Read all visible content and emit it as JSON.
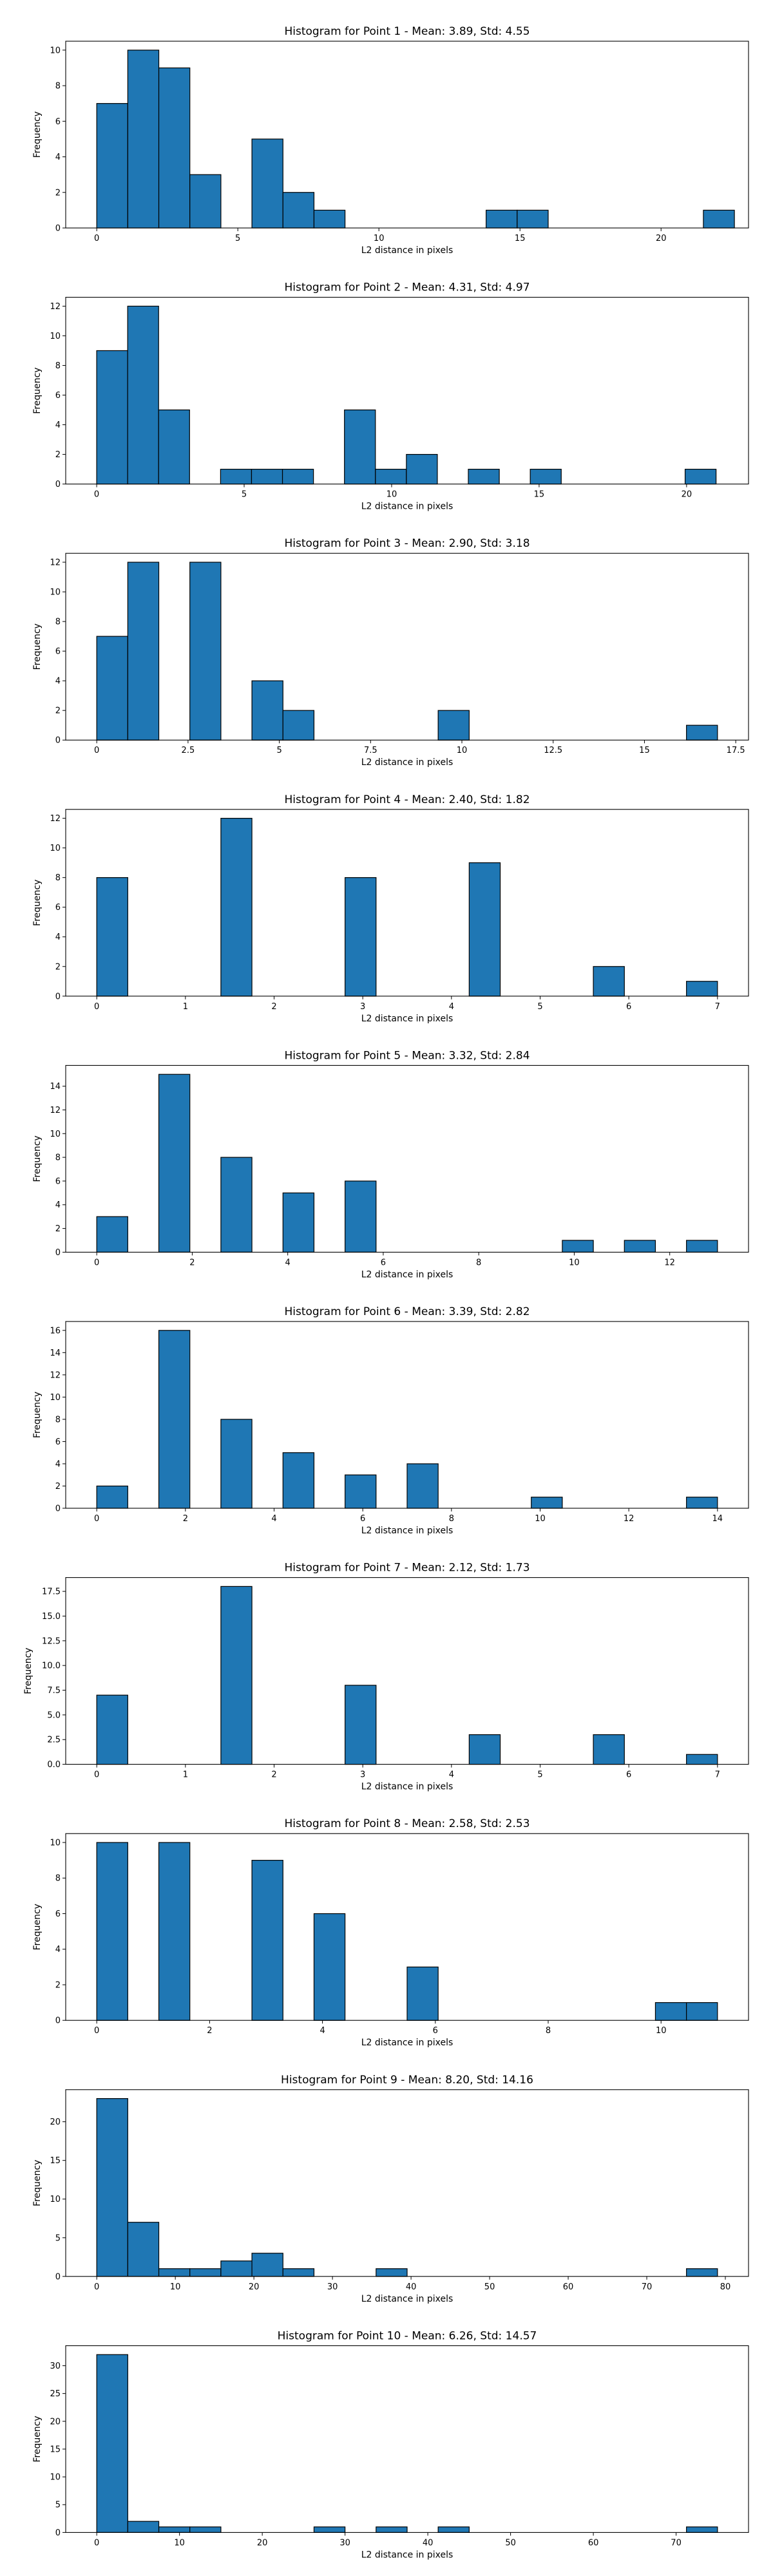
{
  "colors": {
    "bar_fill": "#1f77b4",
    "bar_edge": "#000000",
    "axes": "#000000"
  },
  "chart_data": [
    {
      "type": "bar",
      "title": "Histogram for Point 1 - Mean: 3.89, Std: 4.55",
      "xlabel": "L2 distance in pixels",
      "ylabel": "Frequency",
      "xlim": [
        -1.1,
        23.1
      ],
      "ylim": [
        0,
        10.5
      ],
      "xticks": [
        0,
        5,
        10,
        15,
        20
      ],
      "yticks": [
        0,
        2,
        4,
        6,
        8,
        10
      ],
      "bins": [
        [
          0.0,
          1.1,
          7
        ],
        [
          1.1,
          2.2,
          10
        ],
        [
          2.2,
          3.3,
          9
        ],
        [
          3.3,
          4.4,
          3
        ],
        [
          5.5,
          6.6,
          5
        ],
        [
          6.6,
          7.7,
          2
        ],
        [
          7.7,
          8.8,
          1
        ],
        [
          13.8,
          14.9,
          1
        ],
        [
          14.9,
          16.0,
          1
        ],
        [
          21.5,
          22.6,
          1
        ]
      ]
    },
    {
      "type": "bar",
      "title": "Histogram for Point 2 - Mean: 4.31, Std: 4.97",
      "xlabel": "L2 distance in pixels",
      "ylabel": "Frequency",
      "xlim": [
        -1.05,
        22.1
      ],
      "ylim": [
        0,
        12.6
      ],
      "xticks": [
        0,
        5,
        10,
        15,
        20
      ],
      "yticks": [
        0,
        2,
        4,
        6,
        8,
        10,
        12
      ],
      "bins": [
        [
          0.0,
          1.05,
          9
        ],
        [
          1.05,
          2.1,
          12
        ],
        [
          2.1,
          3.15,
          5
        ],
        [
          4.2,
          5.25,
          1
        ],
        [
          5.25,
          6.3,
          1
        ],
        [
          6.3,
          7.35,
          1
        ],
        [
          8.4,
          9.45,
          5
        ],
        [
          9.45,
          10.5,
          1
        ],
        [
          10.5,
          11.55,
          2
        ],
        [
          12.6,
          13.65,
          1
        ],
        [
          14.7,
          15.75,
          1
        ],
        [
          19.95,
          21.0,
          1
        ]
      ]
    },
    {
      "type": "bar",
      "title": "Histogram for Point 3 - Mean: 2.90, Std: 3.18",
      "xlabel": "L2 distance in pixels",
      "ylabel": "Frequency",
      "xlim": [
        -0.85,
        17.85
      ],
      "ylim": [
        0,
        12.6
      ],
      "xticks": [
        0.0,
        2.5,
        5.0,
        7.5,
        10.0,
        12.5,
        15.0,
        17.5
      ],
      "yticks": [
        0,
        2,
        4,
        6,
        8,
        10,
        12
      ],
      "bins": [
        [
          0.0,
          0.85,
          7
        ],
        [
          0.85,
          1.7,
          12
        ],
        [
          2.55,
          3.4,
          12
        ],
        [
          4.25,
          5.1,
          4
        ],
        [
          5.1,
          5.95,
          2
        ],
        [
          9.35,
          10.2,
          2
        ],
        [
          16.15,
          17.0,
          1
        ]
      ]
    },
    {
      "type": "bar",
      "title": "Histogram for Point 4 - Mean: 2.40, Std: 1.82",
      "xlabel": "L2 distance in pixels",
      "ylabel": "Frequency",
      "xlim": [
        -0.35,
        7.35
      ],
      "ylim": [
        0,
        12.6
      ],
      "xticks": [
        0,
        1,
        2,
        3,
        4,
        5,
        6,
        7
      ],
      "yticks": [
        0,
        2,
        4,
        6,
        8,
        10,
        12
      ],
      "bins": [
        [
          0.0,
          0.35,
          8
        ],
        [
          1.4,
          1.75,
          12
        ],
        [
          2.8,
          3.15,
          8
        ],
        [
          4.2,
          4.55,
          9
        ],
        [
          5.6,
          5.95,
          2
        ],
        [
          6.65,
          7.0,
          1
        ]
      ]
    },
    {
      "type": "bar",
      "title": "Histogram for Point 5 - Mean: 3.32, Std: 2.84",
      "xlabel": "L2 distance in pixels",
      "ylabel": "Frequency",
      "xlim": [
        -0.65,
        13.65
      ],
      "ylim": [
        0,
        15.75
      ],
      "xticks": [
        0,
        2,
        4,
        6,
        8,
        10,
        12
      ],
      "yticks": [
        0,
        2,
        4,
        6,
        8,
        10,
        12,
        14
      ],
      "bins": [
        [
          0.0,
          0.65,
          3
        ],
        [
          1.3,
          1.95,
          15
        ],
        [
          2.6,
          3.25,
          8
        ],
        [
          3.9,
          4.55,
          5
        ],
        [
          5.2,
          5.85,
          6
        ],
        [
          9.75,
          10.4,
          1
        ],
        [
          11.05,
          11.7,
          1
        ],
        [
          12.35,
          13.0,
          1
        ]
      ]
    },
    {
      "type": "bar",
      "title": "Histogram for Point 6 - Mean: 3.39, Std: 2.82",
      "xlabel": "L2 distance in pixels",
      "ylabel": "Frequency",
      "xlim": [
        -0.7,
        14.7
      ],
      "ylim": [
        0,
        16.8
      ],
      "xticks": [
        0,
        2,
        4,
        6,
        8,
        10,
        12,
        14
      ],
      "yticks": [
        0,
        2,
        4,
        6,
        8,
        10,
        12,
        14,
        16
      ],
      "bins": [
        [
          0.0,
          0.7,
          2
        ],
        [
          1.4,
          2.1,
          16
        ],
        [
          2.8,
          3.5,
          8
        ],
        [
          4.2,
          4.9,
          5
        ],
        [
          5.6,
          6.3,
          3
        ],
        [
          7.0,
          7.7,
          4
        ],
        [
          9.8,
          10.5,
          1
        ],
        [
          13.3,
          14.0,
          1
        ]
      ]
    },
    {
      "type": "bar",
      "title": "Histogram for Point 7 - Mean: 2.12, Std: 1.73",
      "xlabel": "L2 distance in pixels",
      "ylabel": "Frequency",
      "xlim": [
        -0.35,
        7.35
      ],
      "ylim": [
        0,
        18.9
      ],
      "xticks": [
        0,
        1,
        2,
        3,
        4,
        5,
        6,
        7
      ],
      "yticks": [
        0.0,
        2.5,
        5.0,
        7.5,
        10.0,
        12.5,
        15.0,
        17.5
      ],
      "ytick_labels": [
        "0.0",
        "2.5",
        "5.0",
        "7.5",
        "10.0",
        "12.5",
        "15.0",
        "17.5"
      ],
      "bins": [
        [
          0.0,
          0.35,
          7
        ],
        [
          1.4,
          1.75,
          18
        ],
        [
          2.8,
          3.15,
          8
        ],
        [
          4.2,
          4.55,
          3
        ],
        [
          5.6,
          5.95,
          3
        ],
        [
          6.65,
          7.0,
          1
        ]
      ]
    },
    {
      "type": "bar",
      "title": "Histogram for Point 8 - Mean: 2.58, Std: 2.53",
      "xlabel": "L2 distance in pixels",
      "ylabel": "Frequency",
      "xlim": [
        -0.55,
        11.55
      ],
      "ylim": [
        0,
        10.5
      ],
      "xticks": [
        0,
        2,
        4,
        6,
        8,
        10
      ],
      "yticks": [
        0,
        2,
        4,
        6,
        8,
        10
      ],
      "bins": [
        [
          0.0,
          0.55,
          10
        ],
        [
          1.1,
          1.65,
          10
        ],
        [
          2.75,
          3.3,
          9
        ],
        [
          3.85,
          4.4,
          6
        ],
        [
          5.5,
          6.05,
          3
        ],
        [
          9.9,
          10.45,
          1
        ],
        [
          10.45,
          11.0,
          1
        ]
      ]
    },
    {
      "type": "bar",
      "title": "Histogram for Point 9 - Mean: 8.20, Std: 14.16",
      "xlabel": "L2 distance in pixels",
      "ylabel": "Frequency",
      "xlim": [
        -3.95,
        82.95
      ],
      "ylim": [
        0,
        24.15
      ],
      "xticks": [
        0,
        10,
        20,
        30,
        40,
        50,
        60,
        70,
        80
      ],
      "yticks": [
        0,
        5,
        10,
        15,
        20
      ],
      "bins": [
        [
          0.0,
          3.95,
          23
        ],
        [
          3.95,
          7.9,
          7
        ],
        [
          7.9,
          11.85,
          1
        ],
        [
          11.85,
          15.8,
          1
        ],
        [
          15.8,
          19.75,
          2
        ],
        [
          19.75,
          23.7,
          3
        ],
        [
          23.7,
          27.65,
          1
        ],
        [
          35.55,
          39.5,
          1
        ],
        [
          75.05,
          79.0,
          1
        ]
      ]
    },
    {
      "type": "bar",
      "title": "Histogram for Point 10 - Mean: 6.26, Std: 14.57",
      "xlabel": "L2 distance in pixels",
      "ylabel": "Frequency",
      "xlim": [
        -3.75,
        78.75
      ],
      "ylim": [
        0,
        33.6
      ],
      "xticks": [
        0,
        10,
        20,
        30,
        40,
        50,
        60,
        70
      ],
      "yticks": [
        0,
        5,
        10,
        15,
        20,
        25,
        30
      ],
      "bins": [
        [
          0.0,
          3.75,
          32
        ],
        [
          3.75,
          7.5,
          2
        ],
        [
          7.5,
          11.25,
          1
        ],
        [
          11.25,
          15.0,
          1
        ],
        [
          26.25,
          30.0,
          1
        ],
        [
          33.75,
          37.5,
          1
        ],
        [
          41.25,
          45.0,
          1
        ],
        [
          71.25,
          75.0,
          1
        ]
      ]
    }
  ]
}
